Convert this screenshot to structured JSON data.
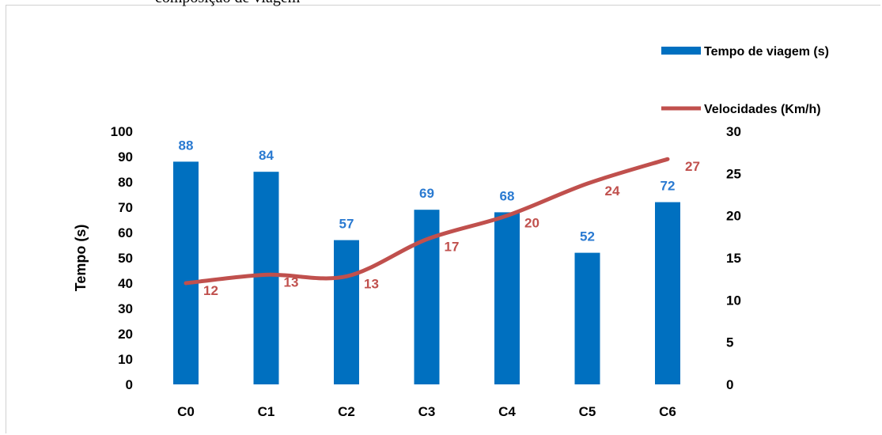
{
  "page": {
    "caption": "composição de viagem"
  },
  "colors": {
    "bars": "#0070c0",
    "line": "#c0504d",
    "bar_label": "#2a7ad1",
    "line_label": "#c0504d"
  },
  "chart_data": {
    "type": "bar",
    "categories": [
      "C0",
      "C1",
      "C2",
      "C3",
      "C4",
      "C5",
      "C6"
    ],
    "series": [
      {
        "name": "Tempo de viagem (s)",
        "type": "bar",
        "axis": "left",
        "values": [
          88,
          84,
          57,
          69,
          68,
          52,
          72
        ],
        "labels": [
          "88",
          "84",
          "57",
          "69",
          "68",
          "52",
          "72"
        ]
      },
      {
        "name": "Velocidades (Km/h)",
        "type": "line",
        "axis": "right",
        "values": [
          12,
          13,
          12.8,
          17.2,
          20,
          23.8,
          26.7
        ],
        "labels": [
          "12",
          "13",
          "13",
          "17",
          "20",
          "24",
          "27"
        ]
      }
    ],
    "ylabel": "Tempo (s)",
    "y_left": {
      "min": 0,
      "max": 100,
      "ticks": [
        "0",
        "10",
        "20",
        "30",
        "40",
        "50",
        "60",
        "70",
        "80",
        "90",
        "100"
      ]
    },
    "y_right": {
      "min": 0,
      "max": 30,
      "ticks": [
        "0",
        "5",
        "10",
        "15",
        "20",
        "25",
        "30"
      ]
    },
    "grid": false,
    "legend": "top-right"
  }
}
